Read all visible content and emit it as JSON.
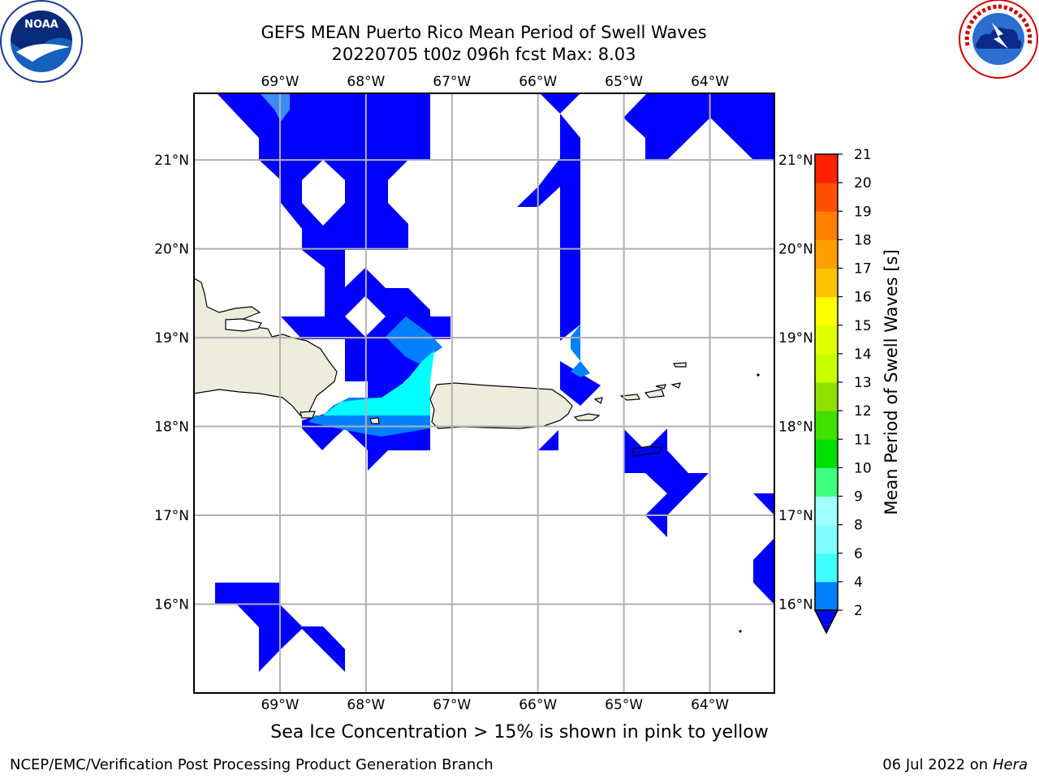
{
  "header": {
    "title_line1": "GEFS MEAN Puerto Rico Mean Period of Swell Waves",
    "title_line2": "20220705 t00z 096h fcst   Max: 8.03"
  },
  "logos": {
    "left": {
      "name": "noaa-logo",
      "text": "NOAA"
    },
    "right": {
      "name": "nws-logo",
      "text": "NATIONAL WEATHER SERVICE"
    }
  },
  "map": {
    "lon_labels": [
      "69°W",
      "68°W",
      "67°W",
      "66°W",
      "65°W",
      "64°W"
    ],
    "lat_labels": [
      "21°N",
      "20°N",
      "19°N",
      "18°N",
      "17°N",
      "16°N"
    ],
    "lon_range": [
      -70.0,
      -63.25
    ],
    "lat_range": [
      15.0,
      21.75
    ],
    "land_color": "#eeecdc",
    "grid_color": "#b0b0b0"
  },
  "colorbar": {
    "label": "Mean Period of Swell Waves [s]",
    "ticks": [
      "2",
      "4",
      "6",
      "8",
      "9",
      "10",
      "11",
      "12",
      "13",
      "14",
      "15",
      "16",
      "17",
      "18",
      "19",
      "20",
      "21"
    ],
    "colors": [
      "#0080ff",
      "#00ffff",
      "#40ffff",
      "#80ffff",
      "#a0ffff",
      "#40ff80",
      "#00e000",
      "#40e000",
      "#90e000",
      "#c8ff00",
      "#e0ff00",
      "#ffff00",
      "#ffc000",
      "#ffa000",
      "#ff8000",
      "#ff5000",
      "#ff2000",
      "#ff0000"
    ],
    "under_color": "#0000ff"
  },
  "footer": {
    "note": "Sea Ice Concentration > 15% is shown in pink to yellow",
    "credit_left": "NCEP/EMC/Verification Post Processing Product Generation Branch",
    "credit_right_date": "06 Jul 2022 on ",
    "credit_right_host": "Hera"
  }
}
